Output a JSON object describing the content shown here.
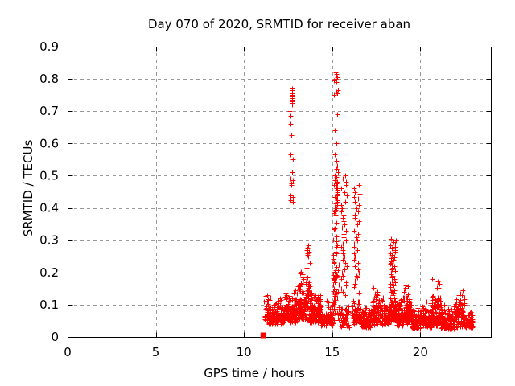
{
  "chart_data": {
    "type": "scatter",
    "title": "Day 070 of 2020, SRMTID for receiver aban",
    "xlabel": "GPS time / hours",
    "ylabel": "SRMTID / TECUs",
    "xlim": [
      0,
      24
    ],
    "ylim": [
      0,
      0.9
    ],
    "grid": true,
    "legend": "none",
    "seed": 42,
    "colors": {
      "points": "#ff0000",
      "grid": "#9a9a9a",
      "frame": "#000000",
      "background": "#ffffff",
      "text": "#000000"
    },
    "xticks": [
      {
        "v": 0,
        "label": "0"
      },
      {
        "v": 5,
        "label": "5"
      },
      {
        "v": 10,
        "label": "10"
      },
      {
        "v": 15,
        "label": "15"
      },
      {
        "v": 20,
        "label": "20"
      }
    ],
    "yticks": [
      {
        "v": 0,
        "label": "0"
      },
      {
        "v": 0.1,
        "label": "0.1"
      },
      {
        "v": 0.2,
        "label": "0.2"
      },
      {
        "v": 0.3,
        "label": "0.3"
      },
      {
        "v": 0.4,
        "label": "0.4"
      },
      {
        "v": 0.5,
        "label": "0.5"
      },
      {
        "v": 0.6,
        "label": "0.6"
      },
      {
        "v": 0.7,
        "label": "0.7"
      },
      {
        "v": 0.8,
        "label": "0.8"
      },
      {
        "v": 0.9,
        "label": "0.9"
      }
    ],
    "x_data_range": [
      11.1,
      23.0
    ],
    "series": [
      {
        "name": "srmtid",
        "marker": "plus",
        "marker_size": 7,
        "band_segments": [
          {
            "x0": 11.15,
            "x1": 11.45,
            "n": 22,
            "y0": 0.05,
            "y1": 0.19
          },
          {
            "x0": 11.3,
            "x1": 12.35,
            "n": 150,
            "y0": 0.04,
            "y1": 0.13
          },
          {
            "x0": 12.35,
            "x1": 13.05,
            "n": 140,
            "y0": 0.045,
            "y1": 0.165
          },
          {
            "x0": 13.05,
            "x1": 13.7,
            "n": 105,
            "y0": 0.05,
            "y1": 0.215
          },
          {
            "x0": 13.7,
            "x1": 14.35,
            "n": 120,
            "y0": 0.045,
            "y1": 0.19
          },
          {
            "x0": 14.35,
            "x1": 15.05,
            "n": 100,
            "y0": 0.035,
            "y1": 0.115
          },
          {
            "x0": 15.05,
            "x1": 15.4,
            "n": 60,
            "y0": 0.05,
            "y1": 0.42
          },
          {
            "x0": 15.45,
            "x1": 15.95,
            "n": 45,
            "y0": 0.03,
            "y1": 0.12
          },
          {
            "x0": 16.15,
            "x1": 16.6,
            "n": 50,
            "y0": 0.04,
            "y1": 0.15
          },
          {
            "x0": 16.6,
            "x1": 17.15,
            "n": 80,
            "y0": 0.03,
            "y1": 0.105
          },
          {
            "x0": 17.15,
            "x1": 17.9,
            "n": 110,
            "y0": 0.035,
            "y1": 0.155
          },
          {
            "x0": 17.9,
            "x1": 18.25,
            "n": 60,
            "y0": 0.04,
            "y1": 0.125
          },
          {
            "x0": 18.25,
            "x1": 18.65,
            "n": 70,
            "y0": 0.05,
            "y1": 0.15
          },
          {
            "x0": 18.65,
            "x1": 19.05,
            "n": 70,
            "y0": 0.035,
            "y1": 0.135
          },
          {
            "x0": 19.05,
            "x1": 19.5,
            "n": 80,
            "y0": 0.04,
            "y1": 0.175
          },
          {
            "x0": 19.5,
            "x1": 20.0,
            "n": 80,
            "y0": 0.025,
            "y1": 0.1
          },
          {
            "x0": 20.0,
            "x1": 20.65,
            "n": 100,
            "y0": 0.03,
            "y1": 0.115
          },
          {
            "x0": 20.65,
            "x1": 21.15,
            "n": 90,
            "y0": 0.035,
            "y1": 0.185
          },
          {
            "x0": 21.15,
            "x1": 21.95,
            "n": 115,
            "y0": 0.025,
            "y1": 0.105
          },
          {
            "x0": 21.95,
            "x1": 22.55,
            "n": 95,
            "y0": 0.03,
            "y1": 0.168
          },
          {
            "x0": 22.55,
            "x1": 23.0,
            "n": 60,
            "y0": 0.03,
            "y1": 0.095
          }
        ],
        "spikes": [
          {
            "x0": 12.6,
            "x1": 12.78,
            "ys": [
              0.77,
              0.765,
              0.76,
              0.755,
              0.75,
              0.745,
              0.74,
              0.735,
              0.73,
              0.725,
              0.72,
              0.7,
              0.685,
              0.66,
              0.625,
              0.565,
              0.55,
              0.51,
              0.49,
              0.485,
              0.475,
              0.47,
              0.44,
              0.435,
              0.43,
              0.425,
              0.42
            ]
          },
          {
            "x0": 13.55,
            "x1": 13.75,
            "ys": [
              0.285,
              0.275,
              0.27,
              0.265,
              0.26,
              0.255,
              0.25,
              0.23,
              0.215
            ]
          },
          {
            "x0": 15.08,
            "x1": 15.32,
            "ys": [
              0.82,
              0.815,
              0.81,
              0.805,
              0.8,
              0.795,
              0.79,
              0.765,
              0.76,
              0.755,
              0.75,
              0.72,
              0.69,
              0.64,
              0.6,
              0.565,
              0.545,
              0.53,
              0.52,
              0.51,
              0.5,
              0.495,
              0.49,
              0.485,
              0.48,
              0.475,
              0.47,
              0.465,
              0.46,
              0.455,
              0.45,
              0.445,
              0.44,
              0.435,
              0.43,
              0.43,
              0.425,
              0.42,
              0.415,
              0.41,
              0.405,
              0.4,
              0.395,
              0.39,
              0.385,
              0.38
            ]
          },
          {
            "x0": 15.5,
            "x1": 15.85,
            "ys": [
              0.5,
              0.49,
              0.48,
              0.47,
              0.46,
              0.45,
              0.44,
              0.43,
              0.42,
              0.41,
              0.4,
              0.39,
              0.38,
              0.37,
              0.36,
              0.35,
              0.34,
              0.33,
              0.32,
              0.31,
              0.3,
              0.29,
              0.28,
              0.27,
              0.26,
              0.25,
              0.24,
              0.23,
              0.22,
              0.21,
              0.2,
              0.19,
              0.18,
              0.17,
              0.16,
              0.15,
              0.14,
              0.13
            ]
          },
          {
            "x0": 16.2,
            "x1": 16.55,
            "ys": [
              0.47,
              0.46,
              0.45,
              0.445,
              0.435,
              0.43,
              0.42,
              0.41,
              0.4,
              0.39,
              0.38,
              0.37,
              0.36,
              0.35,
              0.34,
              0.33,
              0.32,
              0.31,
              0.3,
              0.29,
              0.28,
              0.27,
              0.26,
              0.25,
              0.24,
              0.23,
              0.22,
              0.21,
              0.2,
              0.19,
              0.185,
              0.175,
              0.165,
              0.155
            ]
          },
          {
            "x0": 18.28,
            "x1": 18.62,
            "ys": [
              0.305,
              0.3,
              0.295,
              0.29,
              0.285,
              0.28,
              0.275,
              0.27,
              0.265,
              0.26,
              0.255,
              0.25,
              0.248,
              0.245,
              0.24,
              0.238,
              0.235,
              0.23,
              0.228,
              0.225,
              0.22,
              0.215,
              0.21,
              0.205,
              0.2,
              0.195,
              0.19,
              0.185,
              0.18,
              0.175,
              0.17,
              0.165,
              0.16,
              0.155,
              0.15,
              0.145,
              0.14,
              0.135,
              0.13
            ]
          }
        ]
      },
      {
        "name": "start-marker",
        "marker": "filled-square",
        "marker_size": 7,
        "points": [
          [
            11.1,
            0.005
          ]
        ]
      }
    ]
  }
}
